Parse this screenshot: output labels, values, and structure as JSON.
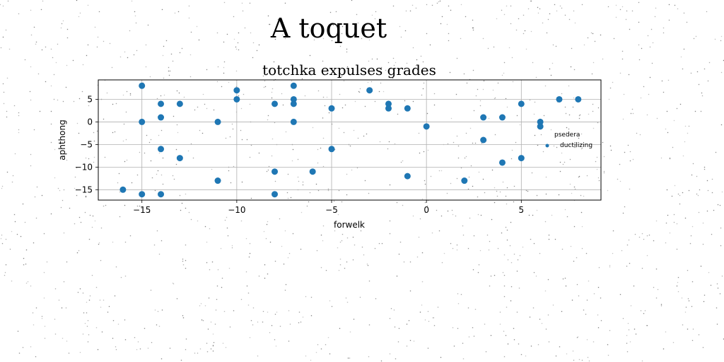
{
  "figure": {
    "title": "A toquet"
  },
  "chart_data": {
    "type": "scatter",
    "title": "totchka expulses grades",
    "xlabel": "forwelk",
    "ylabel": "aphthong",
    "xlim": [
      -17.3,
      9.2
    ],
    "ylim": [
      -17.3,
      9.3
    ],
    "xticks": [
      -15,
      -10,
      -5,
      0,
      5
    ],
    "yticks": [
      5,
      0,
      -5,
      -10,
      -15
    ],
    "grid": true,
    "legend": {
      "placement": "right",
      "title": "psedera",
      "entries": [
        {
          "label": "ductilizing"
        }
      ]
    },
    "series": [
      {
        "name": "ductilizing",
        "color": "#1f77b4",
        "points": [
          {
            "x": -15,
            "y": 8
          },
          {
            "x": -15,
            "y": 0
          },
          {
            "x": -15,
            "y": -16
          },
          {
            "x": -16,
            "y": -15
          },
          {
            "x": -14,
            "y": 4
          },
          {
            "x": -14,
            "y": 1
          },
          {
            "x": -14,
            "y": -6
          },
          {
            "x": -14,
            "y": -16
          },
          {
            "x": -13,
            "y": 4
          },
          {
            "x": -13,
            "y": -8
          },
          {
            "x": -11,
            "y": 0
          },
          {
            "x": -11,
            "y": -13
          },
          {
            "x": -10,
            "y": 7
          },
          {
            "x": -10,
            "y": 5
          },
          {
            "x": -8,
            "y": 4
          },
          {
            "x": -8,
            "y": -11
          },
          {
            "x": -8,
            "y": -16
          },
          {
            "x": -7,
            "y": 8
          },
          {
            "x": -7,
            "y": 5
          },
          {
            "x": -7,
            "y": 4
          },
          {
            "x": -7,
            "y": 0
          },
          {
            "x": -6,
            "y": -11
          },
          {
            "x": -5,
            "y": 3
          },
          {
            "x": -5,
            "y": -6
          },
          {
            "x": -3,
            "y": 7
          },
          {
            "x": -2,
            "y": 4
          },
          {
            "x": -2,
            "y": 3
          },
          {
            "x": -1,
            "y": 3
          },
          {
            "x": -1,
            "y": -12
          },
          {
            "x": 0,
            "y": -1
          },
          {
            "x": 2,
            "y": -13
          },
          {
            "x": 3,
            "y": 1
          },
          {
            "x": 3,
            "y": -4
          },
          {
            "x": 4,
            "y": 1
          },
          {
            "x": 4,
            "y": -9
          },
          {
            "x": 5,
            "y": 4
          },
          {
            "x": 5,
            "y": -8
          },
          {
            "x": 6,
            "y": 0
          },
          {
            "x": 6,
            "y": -1
          },
          {
            "x": 7,
            "y": 5
          },
          {
            "x": 8,
            "y": 5
          }
        ]
      }
    ]
  }
}
